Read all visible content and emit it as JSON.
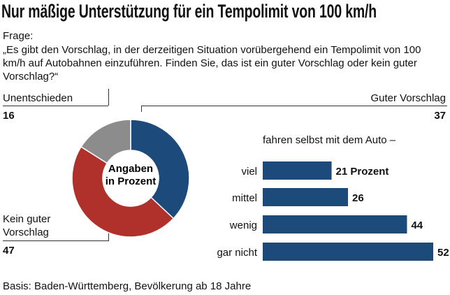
{
  "title": "Nur mäßige Unterstützung für ein Tempolimit von 100 km/h",
  "question_label": "Frage:",
  "question_text": "„Es gibt den Vorschlag, in der derzeitigen Situation vorübergehend ein Tempolimit von 100 km/h auf Autobahnen einzuführen. Finden Sie, das ist ein guter Vorschlag oder kein guter Vorschlag?“",
  "footer": "Basis: Baden-Württemberg, Bevölkerung ab 18 Jahre",
  "colors": {
    "blue": "#1c4a7a",
    "red": "#b0302c",
    "gray": "#8c8c8c"
  },
  "chart_data": [
    {
      "type": "pie",
      "subtype": "donut",
      "center_label": [
        "Angaben",
        "in Prozent"
      ],
      "slices": [
        {
          "label": "Guter Vorschlag",
          "value": 37,
          "color": "#1c4a7a"
        },
        {
          "label": "Kein guter Vorschlag",
          "value": 47,
          "color": "#b0302c"
        },
        {
          "label": "Unentschieden",
          "value": 16,
          "color": "#8c8c8c"
        }
      ]
    },
    {
      "type": "bar",
      "orientation": "horizontal",
      "title": "fahren selbst mit dem Auto –",
      "categories": [
        "viel",
        "mittel",
        "wenig",
        "gar nicht"
      ],
      "values": [
        21,
        26,
        44,
        52
      ],
      "value_labels": [
        "21 Prozent",
        "26",
        "44",
        "52"
      ],
      "color": "#1c4a7a",
      "xlim": [
        0,
        52
      ]
    }
  ]
}
